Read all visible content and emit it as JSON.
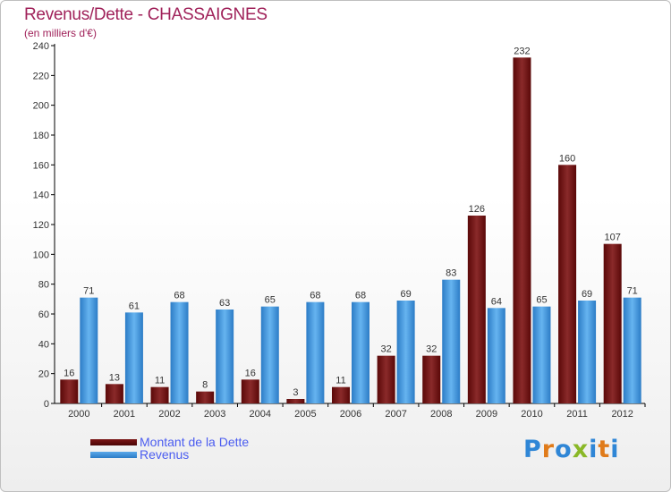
{
  "title": "Revenus/Dette - CHASSAIGNES",
  "subtitle": "(en milliers d'€)",
  "colors": {
    "debt": "#6b0d0d",
    "revenue": "#3a8fd8",
    "title": "#a0225a",
    "legend_text": "#4a5cf0"
  },
  "legend": {
    "debt_label": "Montant de la Dette",
    "revenue_label": "Revenus"
  },
  "logo": {
    "text": "Proxiti",
    "colors": [
      "#2f86d6",
      "#e07b1a",
      "#2f86d6",
      "#8ab827",
      "#2f86d6",
      "#e07b1a",
      "#2f86d6"
    ]
  },
  "chart_data": {
    "type": "bar",
    "title": "Revenus/Dette - CHASSAIGNES",
    "ylabel": "(en milliers d'€)",
    "xlabel": "",
    "categories": [
      "2000",
      "2001",
      "2002",
      "2003",
      "2004",
      "2005",
      "2006",
      "2007",
      "2008",
      "2009",
      "2010",
      "2011",
      "2012"
    ],
    "series": [
      {
        "name": "Montant de la Dette",
        "values": [
          16,
          13,
          11,
          8,
          16,
          3,
          11,
          32,
          32,
          126,
          232,
          160,
          107
        ]
      },
      {
        "name": "Revenus",
        "values": [
          71,
          61,
          68,
          63,
          65,
          68,
          68,
          69,
          83,
          64,
          65,
          69,
          71
        ]
      }
    ],
    "ylim": [
      0,
      240
    ],
    "yticks": [
      0,
      20,
      40,
      60,
      80,
      100,
      120,
      140,
      160,
      180,
      200,
      220,
      240
    ],
    "grid": false,
    "legend": "bottom-left"
  }
}
